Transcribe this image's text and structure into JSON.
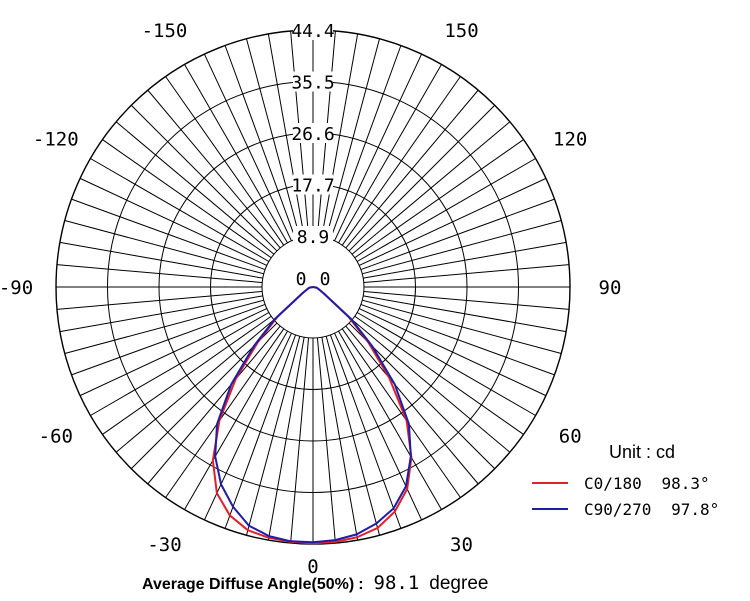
{
  "chart_data": {
    "type": "polar",
    "unit_label": "Unit : cd",
    "ring_labels": [
      "8.9",
      "17.7",
      "26.6",
      "35.5",
      "44.4"
    ],
    "center_labels": [
      "0",
      "0"
    ],
    "rmax": 44.4,
    "angle_labels": [
      {
        "angle": 0,
        "text": "0"
      },
      {
        "angle": 30,
        "text": "30"
      },
      {
        "angle": -30,
        "text": "-30"
      },
      {
        "angle": 60,
        "text": "60"
      },
      {
        "angle": -60,
        "text": "-60"
      },
      {
        "angle": 90,
        "text": "90"
      },
      {
        "angle": -90,
        "text": "-90"
      },
      {
        "angle": 120,
        "text": "120"
      },
      {
        "angle": -120,
        "text": "-120"
      },
      {
        "angle": 150,
        "text": "150"
      },
      {
        "angle": -150,
        "text": "-150"
      }
    ],
    "series": [
      {
        "name": "C0/180",
        "legend_value": "98.3°",
        "color": "#e0202a",
        "angles": [
          -90,
          -80,
          -70,
          -60,
          -50,
          -45,
          -40,
          -35,
          -30,
          -25,
          -20,
          -15,
          -10,
          -5,
          0,
          5,
          10,
          15,
          20,
          25,
          30,
          35,
          40,
          45,
          50,
          60,
          70,
          80,
          90
        ],
        "values": [
          0,
          0.6,
          1.0,
          2.0,
          8.0,
          13.5,
          20.8,
          28.2,
          34.6,
          39.3,
          42.0,
          43.5,
          44.0,
          44.2,
          44.3,
          44.2,
          43.9,
          43.1,
          41.3,
          38.5,
          34.0,
          28.2,
          20.5,
          13.5,
          8.0,
          2.0,
          1.0,
          0.6,
          0
        ]
      },
      {
        "name": "C90/270",
        "legend_value": "97.8°",
        "color": "#1c1ea8",
        "angles": [
          -90,
          -80,
          -70,
          -60,
          -50,
          -45,
          -40,
          -35,
          -30,
          -25,
          -20,
          -15,
          -10,
          -5,
          0,
          5,
          10,
          15,
          20,
          25,
          30,
          35,
          40,
          45,
          50,
          60,
          70,
          80,
          90
        ],
        "values": [
          0,
          0.6,
          1.0,
          2.0,
          8.6,
          14.5,
          22.0,
          28.9,
          33.8,
          37.6,
          40.4,
          42.7,
          43.7,
          44.1,
          44.1,
          43.9,
          43.4,
          42.3,
          40.7,
          38.0,
          33.8,
          28.9,
          22.0,
          14.5,
          8.6,
          2.0,
          1.0,
          0.6,
          0
        ]
      }
    ],
    "grid": true,
    "legend_position": "bottom-right"
  },
  "footer": {
    "caption": "Average Diffuse Angle(50%)",
    "separator": ":",
    "value": "98.1",
    "unit": "degree"
  }
}
